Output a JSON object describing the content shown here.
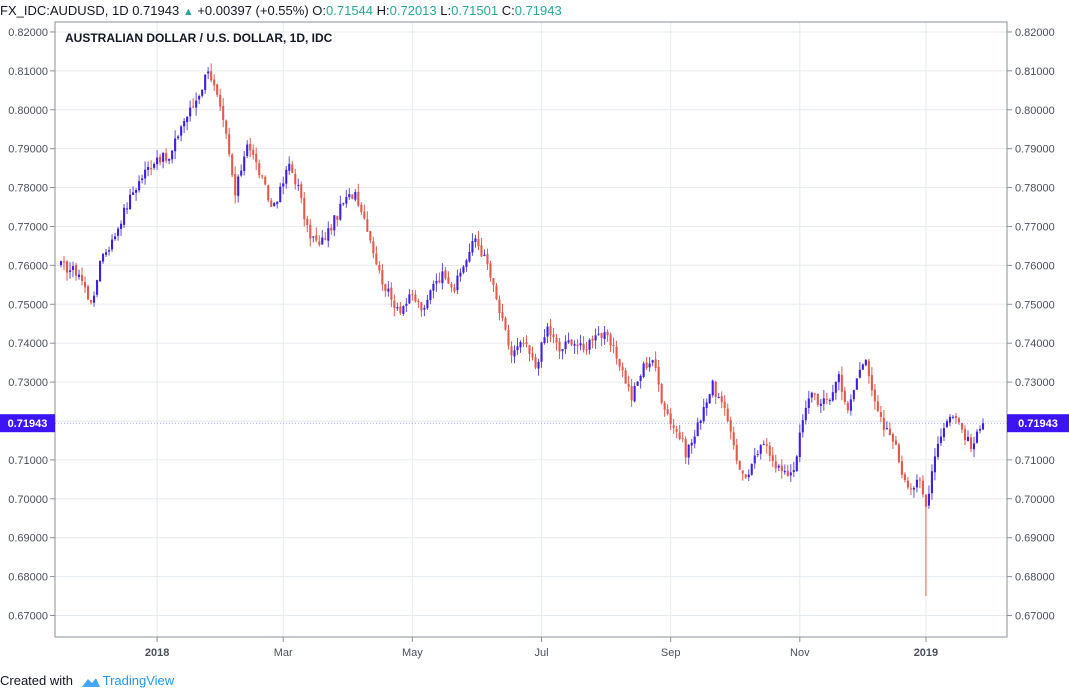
{
  "header": {
    "symbol": "FX_IDC:AUDUSD, 1D",
    "last": "0.71943",
    "change_arrow": "▲",
    "change": "+0.00397 (+0.55%)",
    "o_label": "O:",
    "o_value": "0.71544",
    "h_label": "H:",
    "h_value": "0.72013",
    "l_label": "L:",
    "l_value": "0.71501",
    "c_label": "C:",
    "c_value": "0.71943"
  },
  "footer": {
    "prefix": "Created with",
    "brand": "TradingView",
    "logo_icon": "tradingview-logo-icon"
  },
  "colors": {
    "up": "#3f1fe0",
    "down": "#e15a4c",
    "grid": "#e6ebf0",
    "axis": "#8a8f99",
    "text": "#4a4f5a",
    "price_tag": "#3d14f5",
    "wick_up": "#5b4cdb"
  },
  "chart_data": {
    "type": "candlestick",
    "title": "AUSTRALIAN DOLLAR / U.S. DOLLAR, 1D, IDC",
    "ylim": [
      0.665,
      0.82
    ],
    "y_ticks": [
      "0.82000",
      "0.81000",
      "0.80000",
      "0.79000",
      "0.78000",
      "0.77000",
      "0.76000",
      "0.75000",
      "0.74000",
      "0.73000",
      "0.72000",
      "0.71000",
      "0.70000",
      "0.69000",
      "0.68000",
      "0.67000"
    ],
    "x_ticks": [
      "2018",
      "Mar",
      "May",
      "Jul",
      "Sep",
      "Nov",
      "2019"
    ],
    "x_tick_positions": [
      32,
      74,
      117,
      160,
      203,
      246,
      288
    ],
    "last_price": "0.71943",
    "last_value": 0.71943,
    "n_days": 308,
    "anchors": [
      [
        0,
        0.76
      ],
      [
        6,
        0.758
      ],
      [
        9,
        0.752
      ],
      [
        11,
        0.751
      ],
      [
        13,
        0.762
      ],
      [
        17,
        0.766
      ],
      [
        20,
        0.772
      ],
      [
        24,
        0.779
      ],
      [
        28,
        0.784
      ],
      [
        32,
        0.788
      ],
      [
        36,
        0.787
      ],
      [
        40,
        0.796
      ],
      [
        44,
        0.801
      ],
      [
        47,
        0.806
      ],
      [
        49,
        0.811
      ],
      [
        52,
        0.803
      ],
      [
        55,
        0.793
      ],
      [
        58,
        0.778
      ],
      [
        62,
        0.792
      ],
      [
        66,
        0.784
      ],
      [
        70,
        0.775
      ],
      [
        73,
        0.779
      ],
      [
        76,
        0.786
      ],
      [
        79,
        0.78
      ],
      [
        82,
        0.769
      ],
      [
        86,
        0.765
      ],
      [
        90,
        0.77
      ],
      [
        94,
        0.776
      ],
      [
        98,
        0.779
      ],
      [
        102,
        0.77
      ],
      [
        106,
        0.758
      ],
      [
        110,
        0.751
      ],
      [
        113,
        0.749
      ],
      [
        117,
        0.752
      ],
      [
        121,
        0.748
      ],
      [
        124,
        0.756
      ],
      [
        128,
        0.758
      ],
      [
        131,
        0.754
      ],
      [
        134,
        0.76
      ],
      [
        138,
        0.767
      ],
      [
        142,
        0.76
      ],
      [
        146,
        0.748
      ],
      [
        150,
        0.737
      ],
      [
        154,
        0.74
      ],
      [
        158,
        0.734
      ],
      [
        162,
        0.744
      ],
      [
        166,
        0.738
      ],
      [
        170,
        0.741
      ],
      [
        174,
        0.738
      ],
      [
        178,
        0.743
      ],
      [
        182,
        0.741
      ],
      [
        186,
        0.735
      ],
      [
        190,
        0.726
      ],
      [
        194,
        0.734
      ],
      [
        197,
        0.736
      ],
      [
        200,
        0.726
      ],
      [
        203,
        0.72
      ],
      [
        206,
        0.716
      ],
      [
        208,
        0.712
      ],
      [
        211,
        0.716
      ],
      [
        214,
        0.724
      ],
      [
        217,
        0.729
      ],
      [
        220,
        0.724
      ],
      [
        223,
        0.718
      ],
      [
        226,
        0.707
      ],
      [
        229,
        0.706
      ],
      [
        232,
        0.712
      ],
      [
        235,
        0.714
      ],
      [
        238,
        0.709
      ],
      [
        241,
        0.706
      ],
      [
        244,
        0.708
      ],
      [
        247,
        0.72
      ],
      [
        250,
        0.728
      ],
      [
        253,
        0.724
      ],
      [
        256,
        0.726
      ],
      [
        259,
        0.732
      ],
      [
        262,
        0.722
      ],
      [
        265,
        0.731
      ],
      [
        268,
        0.737
      ],
      [
        271,
        0.724
      ],
      [
        274,
        0.718
      ],
      [
        277,
        0.716
      ],
      [
        280,
        0.707
      ],
      [
        283,
        0.703
      ],
      [
        286,
        0.704
      ],
      [
        288,
        0.698
      ],
      [
        291,
        0.712
      ],
      [
        294,
        0.719
      ],
      [
        297,
        0.722
      ],
      [
        300,
        0.718
      ],
      [
        303,
        0.713
      ],
      [
        305,
        0.716
      ],
      [
        307,
        0.71943
      ]
    ],
    "spike": {
      "day": 288,
      "low": 0.675
    }
  }
}
